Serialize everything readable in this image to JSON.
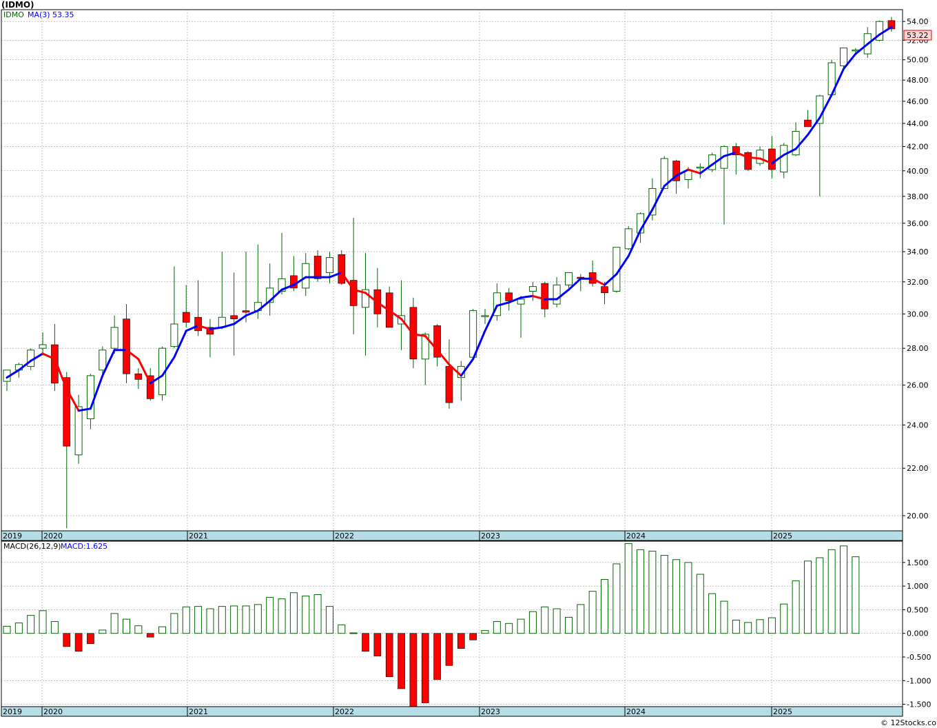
{
  "title": "(IDMO)",
  "footer": "© 12Stocks.com",
  "colors": {
    "up": "#006400",
    "down": "#ff0000",
    "ma_up": "#0000ff",
    "ma_down": "#ff0000",
    "grid": "#9a9a9a",
    "axis_band": "#b6dde5"
  },
  "chart_data": [
    {
      "type": "candlestick",
      "ticker_label": "IDMO",
      "ma_label": "MA(3)",
      "ma_value": "53.35",
      "last_price": "53.22",
      "yticks": [
        20,
        22,
        24,
        26,
        28,
        30,
        32,
        34,
        36,
        38,
        40,
        42,
        44,
        46,
        48,
        50,
        52,
        54
      ],
      "ytick_labels": [
        "20.00",
        "22.00",
        "24.00",
        "26.00",
        "28.00",
        "30.00",
        "32.00",
        "34.00",
        "36.00",
        "38.00",
        "40.00",
        "42.00",
        "44.00",
        "46.00",
        "48.00",
        "50.00",
        "52.00",
        "54.00"
      ],
      "ylim": [
        19.4,
        55.3
      ],
      "y_scale": "log",
      "years": [
        "2019",
        "2020",
        "2021",
        "2022",
        "2023",
        "2024",
        "2025"
      ],
      "ohlc": [
        [
          26.2,
          26.8,
          25.7,
          26.8
        ],
        [
          26.8,
          27.2,
          26.4,
          27.1
        ],
        [
          27.0,
          28.0,
          26.8,
          27.9
        ],
        [
          28.0,
          28.9,
          27.6,
          28.2
        ],
        [
          28.2,
          29.4,
          25.7,
          26.1
        ],
        [
          26.4,
          26.7,
          19.5,
          23.0
        ],
        [
          22.6,
          25.5,
          22.2,
          24.9
        ],
        [
          24.3,
          26.6,
          23.8,
          26.5
        ],
        [
          26.8,
          28.1,
          26.6,
          27.9
        ],
        [
          28.0,
          29.9,
          27.7,
          29.2
        ],
        [
          29.7,
          30.6,
          26.1,
          26.6
        ],
        [
          26.6,
          26.9,
          25.8,
          26.3
        ],
        [
          26.5,
          26.9,
          25.2,
          25.3
        ],
        [
          25.5,
          28.1,
          25.2,
          28.0
        ],
        [
          28.1,
          33.0,
          28.0,
          29.4
        ],
        [
          30.1,
          31.8,
          29.2,
          29.5
        ],
        [
          29.8,
          32.1,
          28.7,
          29.0
        ],
        [
          29.2,
          29.7,
          27.5,
          28.8
        ],
        [
          29.2,
          34.0,
          29.1,
          29.8
        ],
        [
          29.9,
          32.6,
          27.6,
          29.7
        ],
        [
          30.2,
          34.0,
          29.5,
          30.1
        ],
        [
          30.2,
          34.5,
          29.7,
          30.7
        ],
        [
          30.7,
          33.2,
          29.9,
          31.6
        ],
        [
          31.4,
          35.3,
          31.2,
          32.2
        ],
        [
          32.4,
          33.7,
          31.4,
          31.6
        ],
        [
          31.6,
          33.9,
          31.1,
          33.2
        ],
        [
          33.7,
          34.1,
          32.0,
          32.2
        ],
        [
          32.6,
          34.0,
          31.9,
          33.6
        ],
        [
          33.8,
          34.1,
          31.8,
          31.9
        ],
        [
          32.1,
          36.4,
          28.8,
          30.5
        ],
        [
          30.4,
          33.9,
          27.6,
          31.5
        ],
        [
          31.5,
          32.9,
          29.2,
          30.0
        ],
        [
          31.3,
          31.7,
          29.2,
          29.2
        ],
        [
          29.4,
          32.1,
          27.9,
          29.9
        ],
        [
          30.4,
          31.0,
          26.9,
          27.4
        ],
        [
          27.4,
          28.9,
          26.0,
          28.8
        ],
        [
          29.3,
          29.4,
          27.0,
          27.5
        ],
        [
          27.0,
          28.5,
          24.8,
          25.1
        ],
        [
          26.4,
          27.3,
          25.2,
          27.0
        ],
        [
          27.5,
          30.3,
          27.4,
          30.2
        ],
        [
          29.9,
          30.3,
          29.4,
          29.9
        ],
        [
          29.9,
          31.9,
          29.6,
          31.3
        ],
        [
          31.3,
          31.6,
          30.2,
          30.8
        ],
        [
          30.6,
          31.1,
          28.6,
          30.9
        ],
        [
          31.4,
          32.0,
          30.8,
          31.7
        ],
        [
          31.9,
          32.0,
          29.8,
          30.3
        ],
        [
          30.6,
          32.3,
          30.4,
          31.8
        ],
        [
          31.8,
          32.6,
          31.6,
          32.6
        ],
        [
          32.3,
          32.5,
          31.4,
          32.2
        ],
        [
          32.6,
          33.4,
          31.7,
          31.9
        ],
        [
          31.7,
          32.0,
          30.6,
          31.3
        ],
        [
          31.4,
          34.3,
          31.3,
          34.3
        ],
        [
          34.2,
          35.8,
          34.1,
          35.6
        ],
        [
          35.3,
          36.8,
          34.6,
          36.7
        ],
        [
          36.6,
          39.4,
          36.2,
          38.6
        ],
        [
          38.6,
          41.2,
          38.6,
          41.0
        ],
        [
          40.8,
          40.9,
          38.2,
          39.2
        ],
        [
          39.3,
          40.3,
          38.6,
          40.0
        ],
        [
          40.3,
          40.6,
          39.4,
          40.3
        ],
        [
          40.1,
          41.5,
          39.9,
          41.3
        ],
        [
          40.2,
          42.1,
          35.9,
          42.0
        ],
        [
          42.0,
          42.3,
          39.7,
          41.3
        ],
        [
          41.5,
          41.6,
          40.0,
          40.1
        ],
        [
          40.6,
          42.0,
          40.4,
          41.7
        ],
        [
          41.8,
          42.9,
          39.4,
          40.1
        ],
        [
          39.9,
          42.3,
          39.4,
          42.1
        ],
        [
          41.3,
          44.1,
          41.2,
          43.3
        ],
        [
          44.3,
          45.2,
          43.7,
          43.7
        ],
        [
          44.0,
          46.6,
          38.0,
          46.5
        ],
        [
          46.6,
          50.0,
          46.4,
          49.7
        ],
        [
          49.4,
          51.2,
          49.2,
          51.2
        ],
        [
          51.0,
          51.2,
          50.7,
          51.0
        ],
        [
          50.6,
          53.4,
          50.2,
          52.7
        ],
        [
          52.0,
          54.1,
          51.9,
          54.0
        ],
        [
          54.1,
          54.5,
          52.9,
          53.2
        ]
      ],
      "ma": [
        26.4,
        26.8,
        27.3,
        27.7,
        27.4,
        25.8,
        24.7,
        24.8,
        26.5,
        27.9,
        27.9,
        27.4,
        26.1,
        26.5,
        27.5,
        29.0,
        29.3,
        29.1,
        29.2,
        29.4,
        29.9,
        30.2,
        30.8,
        31.5,
        31.8,
        32.3,
        32.3,
        32.3,
        32.6,
        31.5,
        31.3,
        30.7,
        30.2,
        29.7,
        28.8,
        28.7,
        27.9,
        27.1,
        26.5,
        27.4,
        29.0,
        30.5,
        30.7,
        31.0,
        31.1,
        30.9,
        30.9,
        31.5,
        32.2,
        32.2,
        31.8,
        32.5,
        33.7,
        35.5,
        37.0,
        38.8,
        39.6,
        40.1,
        39.8,
        40.5,
        41.2,
        41.5,
        41.1,
        41.0,
        40.6,
        41.3,
        41.8,
        43.0,
        44.5,
        46.6,
        49.1,
        50.6,
        51.6,
        52.6,
        53.4
      ]
    },
    {
      "type": "bar",
      "label": "MACD(26,12,9)",
      "value_label": "MACD:1.625",
      "yticks": [
        -1.5,
        -1.0,
        -0.5,
        0.0,
        0.5,
        1.0,
        1.5
      ],
      "ytick_labels": [
        "-1.500",
        "-1.000",
        "-0.500",
        "0.000",
        "0.500",
        "1.000",
        "1.500"
      ],
      "ylim": [
        -1.55,
        1.95
      ],
      "years": [
        "2019",
        "2020",
        "2021",
        "2022",
        "2023",
        "2024",
        "2025"
      ],
      "values": [
        0.15,
        0.22,
        0.38,
        0.48,
        0.25,
        -0.28,
        -0.38,
        -0.22,
        0.07,
        0.42,
        0.3,
        0.16,
        -0.08,
        0.14,
        0.42,
        0.56,
        0.57,
        0.52,
        0.57,
        0.58,
        0.58,
        0.61,
        0.76,
        0.73,
        0.86,
        0.79,
        0.82,
        0.57,
        0.18,
        0.01,
        -0.38,
        -0.48,
        -0.92,
        -1.17,
        -1.55,
        -1.47,
        -0.98,
        -0.68,
        -0.32,
        -0.14,
        0.06,
        0.25,
        0.21,
        0.3,
        0.46,
        0.56,
        0.52,
        0.34,
        0.61,
        0.89,
        1.14,
        1.47,
        1.9,
        1.77,
        1.74,
        1.65,
        1.56,
        1.5,
        1.25,
        0.84,
        0.68,
        0.28,
        0.23,
        0.29,
        0.33,
        0.62,
        1.11,
        1.53,
        1.6,
        1.77,
        1.85,
        1.62
      ]
    }
  ]
}
